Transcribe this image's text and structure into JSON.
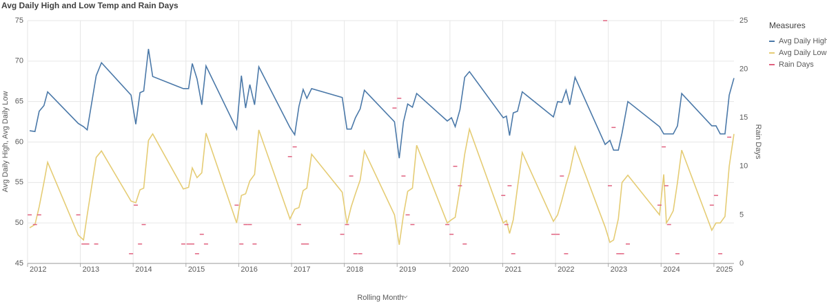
{
  "chart_data": {
    "type": "line",
    "title": "Avg Daily High and Low Temp and Rain Days",
    "xlabel": "Rolling Month",
    "ylabel": "Avg Daily High, Avg Daily Low",
    "y2label": "Rain Days",
    "legend_title": "Measures",
    "legend": "right",
    "grid": true,
    "x": [
      2012.04,
      2012.14,
      2012.22,
      2012.31,
      2012.38,
      2012.96,
      2013.06,
      2013.13,
      2013.3,
      2013.4,
      2013.96,
      2014.05,
      2014.13,
      2014.2,
      2014.29,
      2014.37,
      2014.95,
      2015.05,
      2015.12,
      2015.21,
      2015.3,
      2015.38,
      2015.96,
      2016.05,
      2016.13,
      2016.21,
      2016.3,
      2016.38,
      2016.97,
      2017.06,
      2017.14,
      2017.22,
      2017.29,
      2017.38,
      2017.96,
      2018.05,
      2018.13,
      2018.21,
      2018.3,
      2018.38,
      2018.95,
      2019.04,
      2019.12,
      2019.2,
      2019.29,
      2019.37,
      2019.95,
      2020.03,
      2020.1,
      2020.19,
      2020.28,
      2020.37,
      2021.01,
      2021.07,
      2021.13,
      2021.2,
      2021.28,
      2021.37,
      2021.96,
      2022.04,
      2022.12,
      2022.2,
      2022.27,
      2022.37,
      2022.94,
      2023.03,
      2023.1,
      2023.19,
      2023.26,
      2023.37,
      2023.97,
      2024.05,
      2024.1,
      2024.15,
      2024.23,
      2024.31,
      2024.39,
      2024.96,
      2025.04,
      2025.12,
      2025.21,
      2025.29,
      2025.38
    ],
    "xlim": [
      2012,
      2025.38
    ],
    "xticks": [
      2012,
      2013,
      2014,
      2015,
      2016,
      2017,
      2018,
      2019,
      2020,
      2021,
      2022,
      2023,
      2024,
      2025
    ],
    "ylim": [
      45,
      75
    ],
    "yticks": [
      45,
      50,
      55,
      60,
      65,
      70,
      75
    ],
    "y2lim": [
      0,
      25
    ],
    "y2ticks": [
      0,
      5,
      10,
      15,
      20,
      25
    ],
    "series": [
      {
        "name": "Avg Daily High",
        "color": "#4a78a8",
        "type": "line",
        "values": [
          61.4,
          61.3,
          63.8,
          64.5,
          66.2,
          62.3,
          61.9,
          61.5,
          68.2,
          69.8,
          65.8,
          62.2,
          66.1,
          66.3,
          71.5,
          68.1,
          66.6,
          66.6,
          69.7,
          67.8,
          64.6,
          69.4,
          61.6,
          68.2,
          64.2,
          67.1,
          64.6,
          69.3,
          61.8,
          60.9,
          64.4,
          66.5,
          65.4,
          66.6,
          65.5,
          61.6,
          61.6,
          63.0,
          64.1,
          66.4,
          62.5,
          58.0,
          62.5,
          64.7,
          64.3,
          66.0,
          62.6,
          63.0,
          61.9,
          64.0,
          68.0,
          68.7,
          63.0,
          63.2,
          60.8,
          63.6,
          63.8,
          66.2,
          63.1,
          65.0,
          64.9,
          66.4,
          64.6,
          68.0,
          59.7,
          60.2,
          59.0,
          59.0,
          61.1,
          65.0,
          61.9,
          61.0,
          61.0,
          61.0,
          61.0,
          62.0,
          66.0,
          62.0,
          62.0,
          61.0,
          61.0,
          65.8,
          67.9
        ]
      },
      {
        "name": "Avg Daily Low",
        "color": "#e5cc74",
        "type": "line",
        "values": [
          49.4,
          49.8,
          52.0,
          55.0,
          57.5,
          48.5,
          47.9,
          51.0,
          58.1,
          58.9,
          52.7,
          52.5,
          54.1,
          54.3,
          60.2,
          61.0,
          54.2,
          54.4,
          56.8,
          55.6,
          56.2,
          61.1,
          50.0,
          53.4,
          53.6,
          55.2,
          56.0,
          61.5,
          50.5,
          51.7,
          51.9,
          54.0,
          54.3,
          58.5,
          53.8,
          49.9,
          52.0,
          53.6,
          55.3,
          58.9,
          51.0,
          47.3,
          51.0,
          53.9,
          54.3,
          59.6,
          50.0,
          50.4,
          50.7,
          54.3,
          58.5,
          61.6,
          50.0,
          50.3,
          48.7,
          50.4,
          54.4,
          58.7,
          50.2,
          51.0,
          52.8,
          54.8,
          56.3,
          59.4,
          49.5,
          47.6,
          47.9,
          50.5,
          55.0,
          55.9,
          51.0,
          56.0,
          50.0,
          50.5,
          51.5,
          55.0,
          59.0,
          49.1,
          50.0,
          50.0,
          50.8,
          57.0,
          61.0
        ]
      },
      {
        "name": "Rain Days",
        "color": "#e0607e",
        "type": "dash",
        "axis": "y2",
        "values": [
          5,
          4,
          5,
          null,
          null,
          5,
          2,
          2,
          2,
          null,
          1,
          6,
          2,
          4,
          null,
          null,
          2,
          2,
          2,
          1,
          3,
          2,
          6,
          2,
          4,
          4,
          2,
          null,
          11,
          12,
          4,
          2,
          2,
          null,
          3,
          4,
          9,
          1,
          1,
          null,
          16,
          17,
          9,
          5,
          4,
          null,
          4,
          3,
          10,
          8,
          2,
          null,
          7,
          4,
          8,
          1,
          null,
          null,
          3,
          3,
          9,
          1,
          null,
          null,
          25,
          8,
          14,
          1,
          1,
          2,
          6,
          12,
          8,
          4,
          null,
          1,
          null,
          6,
          7,
          1,
          null,
          13,
          null
        ]
      }
    ]
  }
}
